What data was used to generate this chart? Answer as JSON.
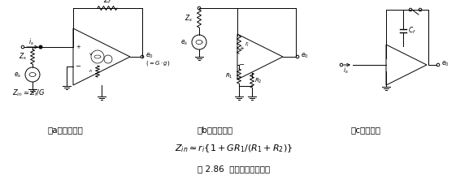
{
  "fig_label": "图 2.86  弱电流的测量方法",
  "caption_a": "（a）低阻抗法",
  "caption_b": "（b）高阻抗法",
  "caption_c": "（c）积分法",
  "bg_color": "#ffffff",
  "line_color": "#000000",
  "figsize": [
    5.77,
    2.38
  ],
  "dpi": 100
}
